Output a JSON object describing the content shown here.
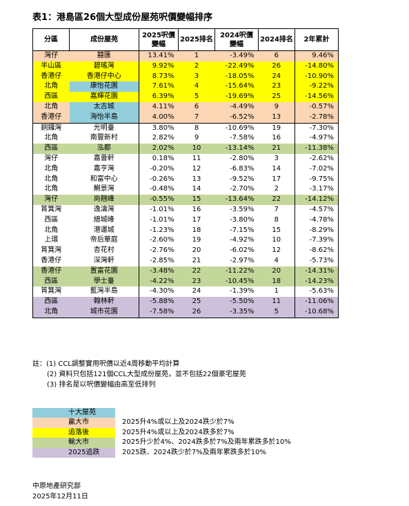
{
  "title": "表1：港島區26個大型成份屋苑呎價變幅排序",
  "headers": [
    "分區",
    "成份屋苑",
    "2025呎價\n變幅",
    "2025排名",
    "2024呎價\n變幅",
    "2024排名",
    "2年累計"
  ],
  "rows": [
    {
      "district": "灣仔",
      "estate": "囍匯",
      "chg2025": "13.41%",
      "rank2025": "1",
      "chg2024": "-3.49%",
      "rank2024": "6",
      "cum": "9.46%",
      "group": "salmon"
    },
    {
      "district": "半山區",
      "estate": "碧瑤灣",
      "chg2025": "9.92%",
      "rank2025": "2",
      "chg2024": "-22.49%",
      "rank2024": "26",
      "cum": "-14.80%",
      "group": "yellow"
    },
    {
      "district": "香港仔",
      "estate": "香港仔中心",
      "chg2025": "8.73%",
      "rank2025": "3",
      "chg2024": "-18.05%",
      "rank2024": "24",
      "cum": "-10.90%",
      "group": "yellow"
    },
    {
      "district": "北角",
      "estate": "康怡花園",
      "chg2025": "7.61%",
      "rank2025": "4",
      "chg2024": "-15.64%",
      "rank2024": "23",
      "cum": "-9.22%",
      "group": "yellow",
      "top10": true
    },
    {
      "district": "西區",
      "estate": "嘉輝花園",
      "chg2025": "6.39%",
      "rank2025": "5",
      "chg2024": "-19.69%",
      "rank2024": "25",
      "cum": "-14.56%",
      "group": "yellow"
    },
    {
      "district": "北角",
      "estate": "太古城",
      "chg2025": "4.11%",
      "rank2025": "6",
      "chg2024": "-4.49%",
      "rank2024": "9",
      "cum": "-0.57%",
      "group": "salmon",
      "top10": true
    },
    {
      "district": "香港仔",
      "estate": "海怡半島",
      "chg2025": "4.00%",
      "rank2025": "7",
      "chg2024": "-6.52%",
      "rank2024": "13",
      "cum": "-2.78%",
      "group": "salmon",
      "top10": true
    },
    {
      "district": "銅鑼灣",
      "estate": "光明臺",
      "chg2025": "3.80%",
      "rank2025": "8",
      "chg2024": "-10.69%",
      "rank2024": "19",
      "cum": "-7.30%",
      "group": "none"
    },
    {
      "district": "北角",
      "estate": "南豐新村",
      "chg2025": "2.82%",
      "rank2025": "9",
      "chg2024": "-7.58%",
      "rank2024": "16",
      "cum": "-4.97%",
      "group": "none"
    },
    {
      "district": "西區",
      "estate": "泓都",
      "chg2025": "2.02%",
      "rank2025": "10",
      "chg2024": "-13.14%",
      "rank2024": "21",
      "cum": "-11.38%",
      "group": "green"
    },
    {
      "district": "灣仔",
      "estate": "嘉薈軒",
      "chg2025": "0.18%",
      "rank2025": "11",
      "chg2024": "-2.80%",
      "rank2024": "3",
      "cum": "-2.62%",
      "group": "none"
    },
    {
      "district": "北角",
      "estate": "嘉亨灣",
      "chg2025": "-0.20%",
      "rank2025": "12",
      "chg2024": "-6.83%",
      "rank2024": "14",
      "cum": "-7.02%",
      "group": "none"
    },
    {
      "district": "北角",
      "estate": "和富中心",
      "chg2025": "-0.26%",
      "rank2025": "13",
      "chg2024": "-9.52%",
      "rank2024": "17",
      "cum": "-9.75%",
      "group": "none"
    },
    {
      "district": "北角",
      "estate": "鰂景灣",
      "chg2025": "-0.48%",
      "rank2025": "14",
      "chg2024": "-2.70%",
      "rank2024": "2",
      "cum": "-3.17%",
      "group": "none"
    },
    {
      "district": "灣仔",
      "estate": "尚翹峰",
      "chg2025": "-0.55%",
      "rank2025": "15",
      "chg2024": "-13.64%",
      "rank2024": "22",
      "cum": "-14.12%",
      "group": "green"
    },
    {
      "district": "筲箕灣",
      "estate": "逸濤灣",
      "chg2025": "-1.01%",
      "rank2025": "16",
      "chg2024": "-3.59%",
      "rank2024": "7",
      "cum": "-4.57%",
      "group": "none"
    },
    {
      "district": "西區",
      "estate": "縉城峰",
      "chg2025": "-1.01%",
      "rank2025": "17",
      "chg2024": "-3.80%",
      "rank2024": "8",
      "cum": "-4.78%",
      "group": "none"
    },
    {
      "district": "北角",
      "estate": "港運城",
      "chg2025": "-1.23%",
      "rank2025": "18",
      "chg2024": "-7.15%",
      "rank2024": "15",
      "cum": "-8.29%",
      "group": "none"
    },
    {
      "district": "上環",
      "estate": "帝后華庭",
      "chg2025": "-2.60%",
      "rank2025": "19",
      "chg2024": "-4.92%",
      "rank2024": "10",
      "cum": "-7.39%",
      "group": "none"
    },
    {
      "district": "筲箕灣",
      "estate": "杏花村",
      "chg2025": "-2.76%",
      "rank2025": "20",
      "chg2024": "-6.02%",
      "rank2024": "12",
      "cum": "-8.62%",
      "group": "none"
    },
    {
      "district": "香港仔",
      "estate": "深灣軒",
      "chg2025": "-2.85%",
      "rank2025": "21",
      "chg2024": "-2.97%",
      "rank2024": "4",
      "cum": "-5.73%",
      "group": "none"
    },
    {
      "district": "香港仔",
      "estate": "置富花園",
      "chg2025": "-3.48%",
      "rank2025": "22",
      "chg2024": "-11.22%",
      "rank2024": "20",
      "cum": "-14.31%",
      "group": "green"
    },
    {
      "district": "西區",
      "estate": "學士臺",
      "chg2025": "-4.22%",
      "rank2025": "23",
      "chg2024": "-10.45%",
      "rank2024": "18",
      "cum": "-14.23%",
      "group": "green"
    },
    {
      "district": "筲箕灣",
      "estate": "藍灣半島",
      "chg2025": "-4.30%",
      "rank2025": "24",
      "chg2024": "-1.39%",
      "rank2024": "1",
      "cum": "-5.63%",
      "group": "none"
    },
    {
      "district": "西區",
      "estate": "翰林軒",
      "chg2025": "-5.88%",
      "rank2025": "25",
      "chg2024": "-5.50%",
      "rank2024": "11",
      "cum": "-11.06%",
      "group": "purple"
    },
    {
      "district": "北角",
      "estate": "城市花園",
      "chg2025": "-7.58%",
      "rank2025": "26",
      "chg2024": "-3.35%",
      "rank2024": "5",
      "cum": "-10.68%",
      "group": "purple"
    }
  ],
  "notes": [
    "註：(1) CCL調整實用呎價以近4周移動平均計算",
    "(2) 資料只包括121個CCL大型成份屋苑，並不包括22個豪宅屋苑",
    "(3) 排名是以呎價變幅由高至低排列"
  ],
  "legend": [
    {
      "label": "十大屋苑",
      "desc": "",
      "color": "#92cddc"
    },
    {
      "label": "贏大市",
      "desc": "2025升4%或以上及2024跌少於7%",
      "color": "#fcd5b4"
    },
    {
      "label": "追落後",
      "desc": "2025升4%或以上及2024跌多於7%",
      "color": "#ffff00"
    },
    {
      "label": "輸大市",
      "desc": "2025升少於4%、2024跌多於7%及兩年累跌多於10%",
      "color": "#c4d79b"
    },
    {
      "label": "2025追跌",
      "desc": "2025跌、2024跌少於7%及兩年累跌多於10%",
      "color": "#ccc0da"
    }
  ],
  "footer": {
    "org": "中原地產研究部",
    "date": "2025年12月11日"
  },
  "colors": {
    "salmon": "#fcd5b4",
    "yellow": "#ffff00",
    "green": "#c4d79b",
    "purple": "#ccc0da",
    "teal": "#92cddc"
  }
}
